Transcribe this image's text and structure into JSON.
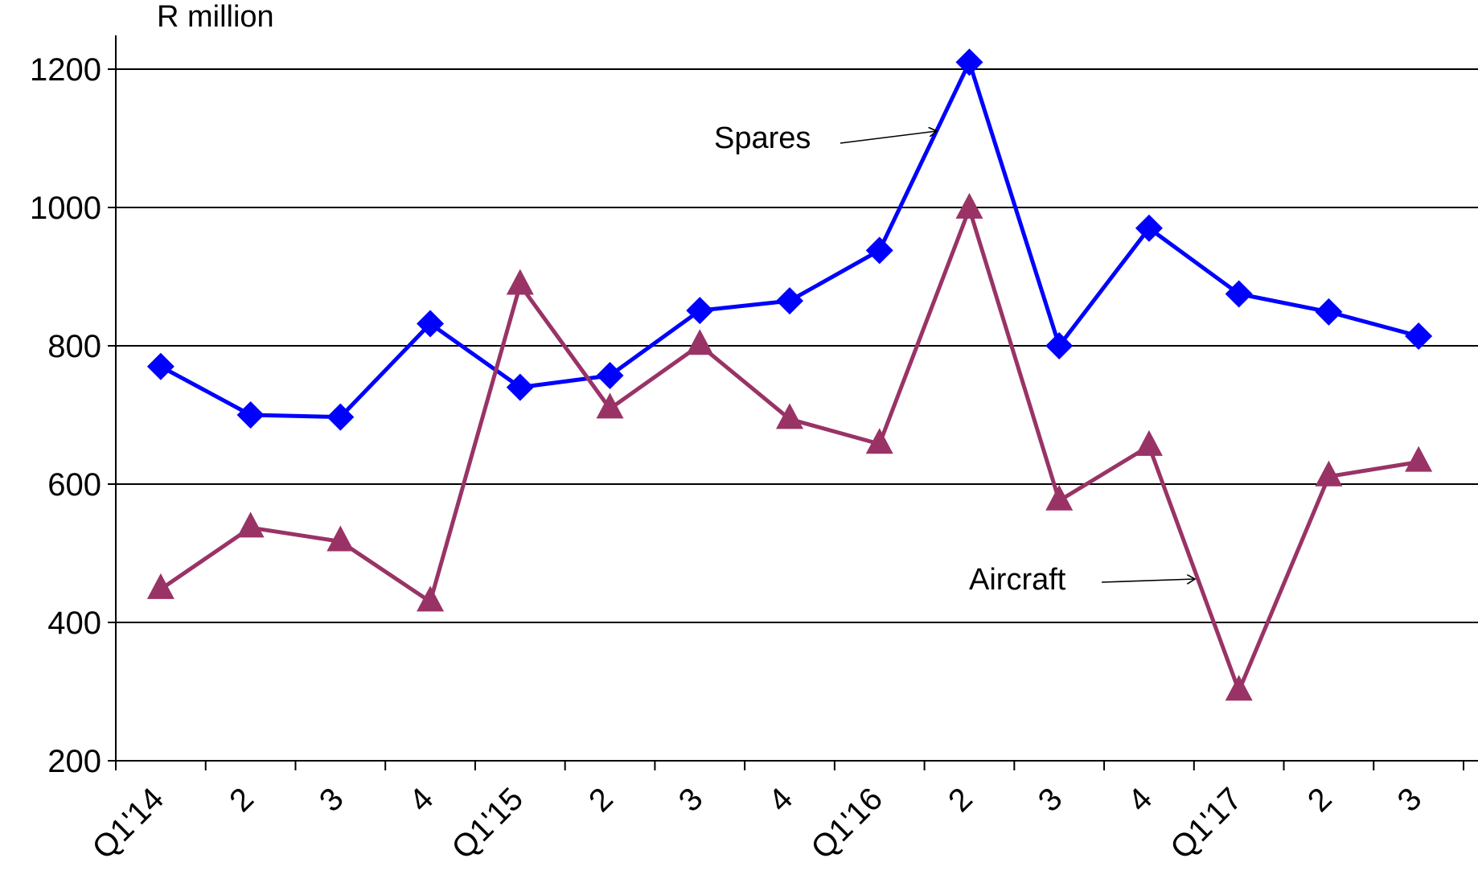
{
  "chart_data": {
    "type": "line",
    "title": "",
    "xlabel": "",
    "ylabel": "R million",
    "ylim": [
      200,
      1200
    ],
    "yticks": [
      200,
      400,
      600,
      800,
      1000,
      1200
    ],
    "grid": true,
    "legend": "none",
    "categories": [
      "Q1'14",
      "2",
      "3",
      "4",
      "Q1'15",
      "2",
      "3",
      "4",
      "Q1'16",
      "2",
      "3",
      "4",
      "Q1'17",
      "2",
      "3"
    ],
    "series": [
      {
        "name": "Spares",
        "color": "#0000ff",
        "marker": "diamond",
        "values": [
          770,
          700,
          697,
          832,
          740,
          757,
          851,
          865,
          938,
          1210,
          800,
          970,
          875,
          849,
          814
        ]
      },
      {
        "name": "Aircraft",
        "color": "#993366",
        "marker": "triangle",
        "values": [
          448,
          537,
          517,
          430,
          888,
          709,
          801,
          694,
          658,
          998,
          576,
          655,
          301,
          611,
          632
        ]
      }
    ]
  }
}
